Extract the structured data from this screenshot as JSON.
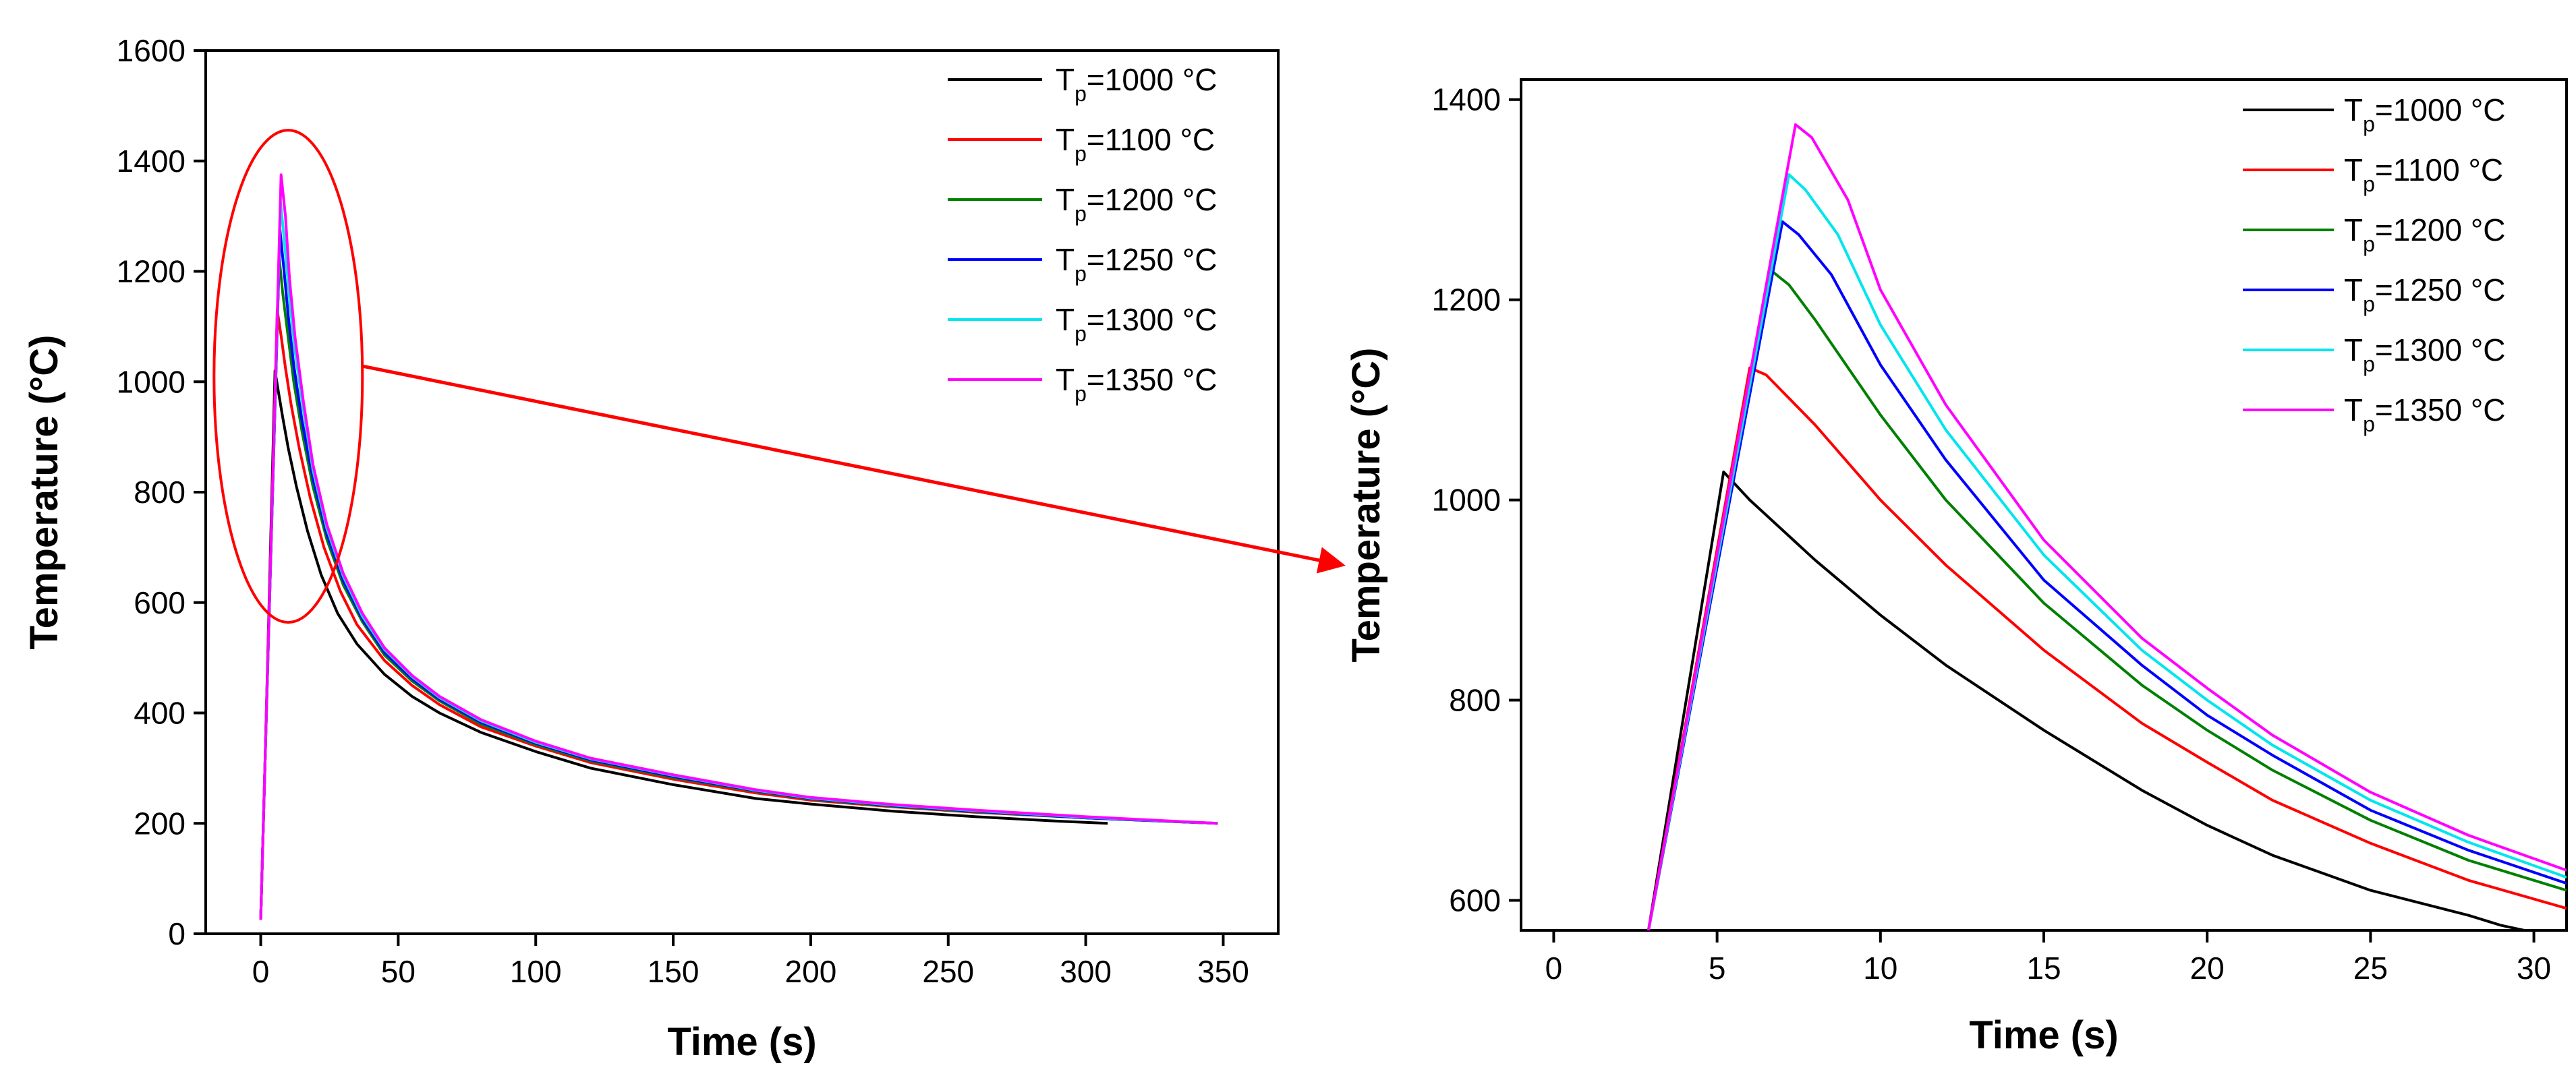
{
  "chart_data": [
    {
      "type": "line",
      "panel": "full-range",
      "xlabel": "Time (s)",
      "ylabel": "Temperature (°C)",
      "xlim": [
        -20,
        370
      ],
      "ylim": [
        0,
        1600
      ],
      "xticks": [
        0,
        50,
        100,
        150,
        200,
        250,
        300,
        350
      ],
      "yticks": [
        0,
        200,
        400,
        600,
        800,
        1000,
        1200,
        1400,
        1600
      ],
      "legend_position": "top-right",
      "series": [
        {
          "name": "Tp=1000 °C",
          "legend_main": "T",
          "legend_sub": "p",
          "legend_value": "=1000 °C",
          "color": "#000000",
          "x": [
            0,
            1.5,
            5.2,
            6.5,
            8,
            10,
            13,
            17,
            22,
            28,
            35,
            45,
            55,
            65,
            80,
            100,
            120,
            150,
            180,
            200,
            230,
            260,
            290,
            308
          ],
          "y": [
            25,
            300,
            1020,
            980,
            935,
            880,
            810,
            730,
            650,
            580,
            525,
            470,
            430,
            400,
            365,
            330,
            300,
            270,
            245,
            235,
            222,
            212,
            204,
            200
          ]
        },
        {
          "name": "Tp=1100 °C",
          "legend_main": "T",
          "legend_sub": "p",
          "legend_value": "=1100 °C",
          "color": "#ff0000",
          "x": [
            0,
            1.5,
            6,
            7.5,
            9,
            11,
            14,
            18,
            23,
            29,
            35,
            45,
            55,
            65,
            80,
            100,
            120,
            150,
            180,
            200,
            230,
            260,
            300,
            348
          ],
          "y": [
            25,
            300,
            1130,
            1080,
            1025,
            960,
            880,
            790,
            700,
            620,
            560,
            495,
            450,
            415,
            375,
            340,
            310,
            280,
            255,
            242,
            230,
            220,
            210,
            200
          ]
        },
        {
          "name": "Tp=1200 °C",
          "legend_main": "T",
          "legend_sub": "p",
          "legend_value": "=1200 °C",
          "color": "#008000",
          "x": [
            0,
            1.5,
            6.7,
            8,
            10,
            12,
            15,
            19,
            24,
            30,
            37,
            45,
            55,
            65,
            80,
            100,
            120,
            150,
            180,
            200,
            230,
            260,
            300,
            348
          ],
          "y": [
            25,
            300,
            1225,
            1160,
            1080,
            1000,
            910,
            810,
            715,
            632,
            565,
            505,
            458,
            422,
            380,
            343,
            313,
            283,
            258,
            244,
            231,
            221,
            210,
            200
          ]
        },
        {
          "name": "Tp=1250 °C",
          "legend_main": "T",
          "legend_sub": "p",
          "legend_value": "=1250 °C",
          "color": "#0000ff",
          "x": [
            0,
            1.5,
            7,
            8.5,
            10,
            12,
            15,
            19,
            24,
            30,
            37,
            45,
            55,
            65,
            80,
            100,
            120,
            150,
            180,
            200,
            230,
            260,
            300,
            348
          ],
          "y": [
            25,
            300,
            1275,
            1200,
            1120,
            1030,
            930,
            825,
            725,
            640,
            570,
            510,
            462,
            425,
            383,
            345,
            315,
            285,
            259,
            245,
            232,
            222,
            210,
            200
          ]
        },
        {
          "name": "Tp=1300 °C",
          "legend_main": "T",
          "legend_sub": "p",
          "legend_value": "=1300 °C",
          "color": "#00e5ee",
          "x": [
            0,
            1.5,
            7.2,
            8.7,
            10.5,
            12.5,
            15.5,
            19,
            24,
            30,
            37,
            45,
            55,
            65,
            80,
            100,
            120,
            150,
            180,
            200,
            230,
            260,
            300,
            348
          ],
          "y": [
            25,
            300,
            1325,
            1250,
            1150,
            1055,
            950,
            840,
            735,
            648,
            575,
            515,
            466,
            428,
            386,
            347,
            317,
            287,
            260,
            246,
            233,
            223,
            211,
            200
          ]
        },
        {
          "name": "Tp=1350 °C",
          "legend_main": "T",
          "legend_sub": "p",
          "legend_value": "=1350 °C",
          "color": "#ff00ff",
          "x": [
            0,
            1.5,
            7.4,
            9,
            10.5,
            12.5,
            15.5,
            19,
            24,
            30,
            37,
            45,
            55,
            65,
            80,
            100,
            120,
            150,
            180,
            200,
            230,
            260,
            300,
            348
          ],
          "y": [
            25,
            300,
            1375,
            1300,
            1185,
            1080,
            965,
            850,
            742,
            653,
            580,
            518,
            468,
            430,
            388,
            349,
            318,
            288,
            261,
            247,
            234,
            224,
            212,
            200
          ]
        }
      ],
      "annotation": {
        "type": "ellipse",
        "color": "#ff0000",
        "center_x": 10,
        "center_y": 1010,
        "note": "highlighted peak region, zoomed in right panel"
      }
    },
    {
      "type": "line",
      "panel": "zoomed",
      "xlabel": "Time (s)",
      "ylabel": "Temperature (°C)",
      "xlim": [
        -1,
        31
      ],
      "ylim": [
        570,
        1420
      ],
      "xticks": [
        0,
        5,
        10,
        15,
        20,
        25,
        30
      ],
      "yticks": [
        600,
        800,
        1000,
        1200,
        1400
      ],
      "legend_position": "top-right",
      "series": [
        {
          "name": "Tp=1000 °C",
          "legend_main": "T",
          "legend_sub": "p",
          "legend_value": "=1000 °C",
          "color": "#000000",
          "x": [
            2.9,
            5.2,
            6,
            8,
            10,
            12,
            15,
            18,
            20,
            22,
            25,
            28,
            29,
            30
          ],
          "y": [
            570,
            1028,
            1000,
            940,
            885,
            835,
            770,
            710,
            675,
            645,
            610,
            585,
            575,
            568
          ]
        },
        {
          "name": "Tp=1100 °C",
          "legend_main": "T",
          "legend_sub": "p",
          "legend_value": "=1100 °C",
          "color": "#ff0000",
          "x": [
            2.9,
            6,
            6.5,
            8,
            10,
            12,
            15,
            18,
            20,
            22,
            25,
            28,
            31
          ],
          "y": [
            570,
            1132,
            1125,
            1075,
            1000,
            935,
            850,
            777,
            738,
            700,
            657,
            620,
            592
          ]
        },
        {
          "name": "Tp=1200 °C",
          "legend_main": "T",
          "legend_sub": "p",
          "legend_value": "=1200 °C",
          "color": "#008000",
          "x": [
            2.9,
            6.7,
            7.2,
            8,
            10,
            12,
            15,
            18,
            20,
            22,
            25,
            28,
            31
          ],
          "y": [
            570,
            1228,
            1215,
            1180,
            1085,
            1000,
            897,
            815,
            770,
            730,
            680,
            640,
            610
          ]
        },
        {
          "name": "Tp=1250 °C",
          "legend_main": "T",
          "legend_sub": "p",
          "legend_value": "=1250 °C",
          "color": "#0000ff",
          "x": [
            2.9,
            7,
            7.5,
            8.5,
            10,
            12,
            15,
            18,
            20,
            22,
            25,
            28,
            31
          ],
          "y": [
            570,
            1278,
            1265,
            1225,
            1135,
            1040,
            920,
            835,
            785,
            745,
            690,
            650,
            617
          ]
        },
        {
          "name": "Tp=1300 °C",
          "legend_main": "T",
          "legend_sub": "p",
          "legend_value": "=1300 °C",
          "color": "#00e5ee",
          "x": [
            2.9,
            7.2,
            7.7,
            8.7,
            10,
            12,
            15,
            18,
            20,
            22,
            25,
            28,
            31
          ],
          "y": [
            570,
            1325,
            1310,
            1265,
            1175,
            1070,
            945,
            850,
            800,
            755,
            700,
            658,
            623
          ]
        },
        {
          "name": "Tp=1350 °C",
          "legend_main": "T",
          "legend_sub": "p",
          "legend_value": "=1350 °C",
          "color": "#ff00ff",
          "x": [
            2.9,
            7.4,
            7.9,
            9,
            10,
            12,
            15,
            18,
            20,
            22,
            25,
            28,
            31
          ],
          "y": [
            570,
            1375,
            1362,
            1300,
            1210,
            1095,
            960,
            862,
            812,
            765,
            708,
            665,
            630
          ]
        }
      ]
    }
  ],
  "connector_arrow": {
    "color": "#ff0000",
    "from": "left-panel-ellipse",
    "to": "right-panel"
  }
}
